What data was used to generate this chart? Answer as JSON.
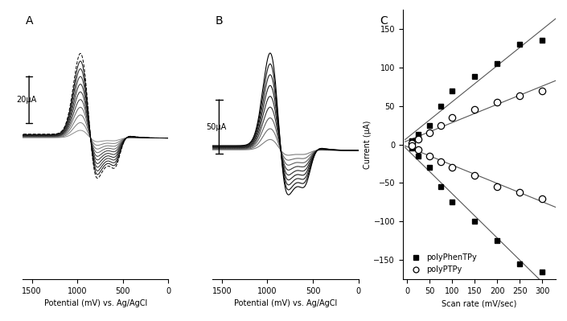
{
  "panel_labels": [
    "A",
    "B",
    "C"
  ],
  "cv_xlabel": "Potential (mV) vs. Ag/AgCl",
  "cv_A_scalebar": "20μA",
  "cv_B_scalebar": "50μA",
  "C_xlabel": "Scan rate (mV/sec)",
  "C_ylabel": "Current (μA)",
  "C_ylim": [
    -175,
    175
  ],
  "C_xlim": [
    -10,
    330
  ],
  "C_yticks": [
    -150,
    -100,
    -50,
    0,
    50,
    100,
    150
  ],
  "C_xticks": [
    0,
    50,
    100,
    150,
    200,
    250,
    300
  ],
  "scan_rates": [
    10,
    25,
    50,
    75,
    100,
    150,
    200,
    250,
    300
  ],
  "polyPhenTPy_anodic": [
    5,
    13,
    25,
    50,
    70,
    88,
    105,
    130,
    135
  ],
  "polyPhenTPy_cathodic": [
    -5,
    -15,
    -30,
    -55,
    -75,
    -100,
    -125,
    -155,
    -165
  ],
  "polyPTPy_anodic": [
    2,
    7,
    15,
    25,
    35,
    45,
    55,
    63,
    70
  ],
  "polyPTPy_cathodic": [
    -2,
    -7,
    -15,
    -22,
    -30,
    -40,
    -55,
    -62,
    -70
  ],
  "background_color": "#ffffff",
  "cv_A_peak_anodic_mV": 950,
  "cv_A_peak_cathodic_mV": 780,
  "cv_A_peak2_anodic_mV": 750,
  "cv_A_peak2_cathodic_mV": 580,
  "cv_B_peak_anodic_mV": 950,
  "cv_B_peak_cathodic_mV": 780,
  "cv_B_peak2_anodic_mV": 750,
  "cv_B_peak2_cathodic_mV": 580,
  "num_curves_A": 11,
  "num_curves_B": 9
}
